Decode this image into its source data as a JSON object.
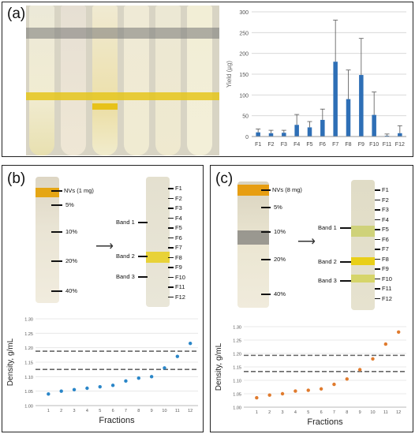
{
  "panel_a": {
    "label": "(a)",
    "chart": {
      "type": "bar",
      "ylabel": "Yield (µg)",
      "ylim": [
        0,
        300
      ],
      "yticks": [
        "0",
        "50",
        "100",
        "150",
        "200",
        "250",
        "300"
      ],
      "categories": [
        "F1",
        "F2",
        "F3",
        "F4",
        "F5",
        "F6",
        "F7",
        "F8",
        "F9",
        "F10",
        "F11",
        "F12"
      ],
      "values": [
        10,
        8,
        9,
        28,
        22,
        40,
        180,
        90,
        148,
        52,
        2,
        8
      ],
      "errors": [
        8,
        7,
        6,
        25,
        14,
        26,
        100,
        70,
        88,
        55,
        4,
        18
      ],
      "bar_color": "#2e6fb6"
    }
  },
  "panel_b": {
    "label": "(b)",
    "left_labels": [
      "NVs (1 mg)",
      "5%",
      "10%",
      "20%",
      "40%"
    ],
    "band_labels": [
      "Band 1",
      "Band 2",
      "Band 3"
    ],
    "fractions": [
      "F1",
      "F2",
      "F3",
      "F4",
      "F5",
      "F6",
      "F7",
      "F8",
      "F9",
      "F10",
      "F11",
      "F12"
    ],
    "chart": {
      "type": "scatter",
      "xlabel": "Fractions",
      "ylabel": "Density, g/mL",
      "ylim": [
        1.0,
        1.3
      ],
      "yticks": [
        "1.00",
        "1.05",
        "1.10",
        "1.15",
        "1.20",
        "1.25",
        "1.30"
      ],
      "xticks": [
        "1",
        "2",
        "3",
        "4",
        "5",
        "6",
        "7",
        "8",
        "9",
        "10",
        "11",
        "12"
      ],
      "x": [
        1,
        2,
        3,
        4,
        5,
        6,
        7,
        8,
        9,
        10,
        11,
        12
      ],
      "y": [
        1.04,
        1.05,
        1.055,
        1.06,
        1.065,
        1.07,
        1.085,
        1.095,
        1.1,
        1.13,
        1.17,
        1.215
      ],
      "dashed_lines": [
        1.188,
        1.125
      ],
      "color": "#2a86c8"
    }
  },
  "panel_c": {
    "label": "(c)",
    "left_labels": [
      "NVs (8 mg)",
      "5%",
      "10%",
      "20%",
      "40%"
    ],
    "band_labels": [
      "Band 1",
      "Band 2",
      "Band 3"
    ],
    "fractions": [
      "F1",
      "F2",
      "F3",
      "F4",
      "F5",
      "F6",
      "F7",
      "F8",
      "F9",
      "F10",
      "F11",
      "F12"
    ],
    "chart": {
      "type": "scatter",
      "xlabel": "Fractions",
      "ylabel": "Density, g/mL",
      "ylim": [
        1.0,
        1.3
      ],
      "yticks": [
        "1.00",
        "1.05",
        "1.10",
        "1.15",
        "1.20",
        "1.25",
        "1.30"
      ],
      "xticks": [
        "1",
        "2",
        "3",
        "4",
        "5",
        "6",
        "7",
        "8",
        "9",
        "10",
        "11",
        "12"
      ],
      "x": [
        1,
        2,
        3,
        4,
        5,
        6,
        7,
        8,
        9,
        10,
        11,
        12
      ],
      "y": [
        1.035,
        1.045,
        1.05,
        1.06,
        1.063,
        1.068,
        1.085,
        1.105,
        1.14,
        1.18,
        1.235,
        1.28
      ],
      "dashed_lines": [
        1.193,
        1.133
      ],
      "color": "#e07b2e"
    }
  }
}
